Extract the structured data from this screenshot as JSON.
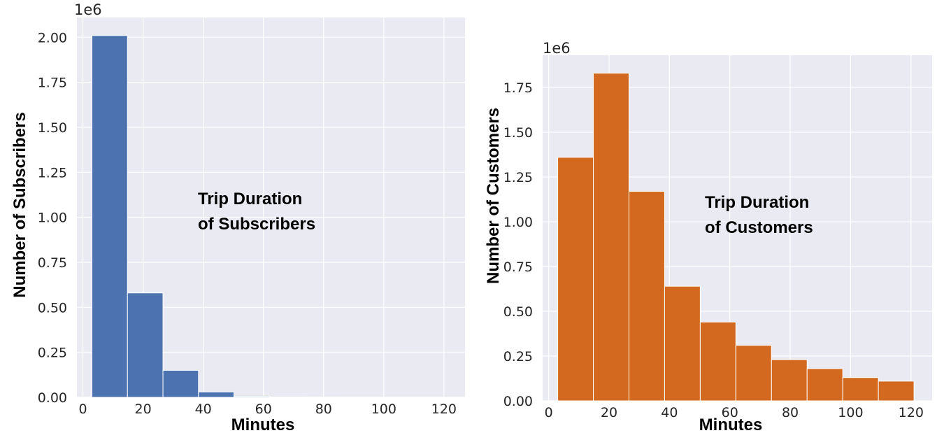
{
  "chart_data": [
    {
      "type": "histogram",
      "name": "subscribers",
      "color": "#4c72b0",
      "background": "#eaeaf2",
      "grid": true,
      "xlabel": "Minutes",
      "ylabel": "Number of Subscribers",
      "y_offset_label": "1e6",
      "annotation": [
        "Trip Duration",
        "of Subscribers"
      ],
      "xlim": [
        -2,
        127
      ],
      "ylim": [
        0,
        2.11
      ],
      "x_ticks": [
        0,
        20,
        40,
        60,
        80,
        100,
        120
      ],
      "y_ticks": [
        0,
        0.25,
        0.5,
        0.75,
        1.0,
        1.25,
        1.5,
        1.75,
        2.0
      ],
      "y_tick_labels": [
        "0.00",
        "0.25",
        "0.50",
        "0.75",
        "1.00",
        "1.25",
        "1.50",
        "1.75",
        "2.00"
      ],
      "bin_edges": [
        3,
        14.8,
        26.6,
        38.4,
        50.2,
        62,
        73.8,
        85.6,
        97.4,
        109.2,
        121
      ],
      "values": [
        2.01,
        0.58,
        0.15,
        0.03,
        0.005,
        0.002,
        0.001,
        0.0005,
        0.0003,
        0.0002
      ]
    },
    {
      "type": "histogram",
      "name": "customers",
      "color": "#d2691e",
      "background": "#eaeaf2",
      "grid": true,
      "xlabel": "Minutes",
      "ylabel": "Number of Customers",
      "y_offset_label": "1e6",
      "annotation": [
        "Trip Duration",
        "of Customers"
      ],
      "xlim": [
        -2,
        127
      ],
      "ylim": [
        0,
        1.93
      ],
      "x_ticks": [
        0,
        20,
        40,
        60,
        80,
        100,
        120
      ],
      "y_ticks": [
        0,
        0.25,
        0.5,
        0.75,
        1.0,
        1.25,
        1.5,
        1.75
      ],
      "y_tick_labels": [
        "0.00",
        "0.25",
        "0.50",
        "0.75",
        "1.00",
        "1.25",
        "1.50",
        "1.75"
      ],
      "bin_edges": [
        3,
        14.8,
        26.6,
        38.4,
        50.2,
        62,
        73.8,
        85.6,
        97.4,
        109.2,
        121
      ],
      "values": [
        1.36,
        1.83,
        1.17,
        0.64,
        0.44,
        0.31,
        0.23,
        0.18,
        0.13,
        0.11
      ]
    }
  ]
}
